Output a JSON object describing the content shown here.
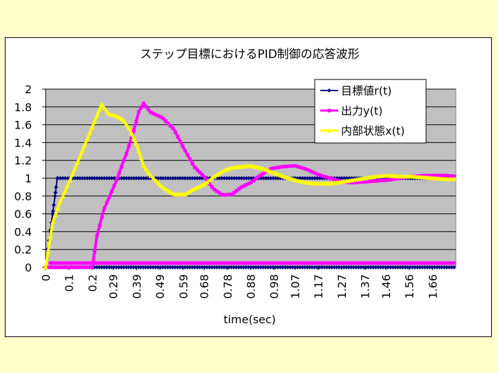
{
  "chart_data": {
    "type": "line",
    "title": "ステップ目標におけるPID制御の応答波形",
    "xlabel": "time(sec)",
    "ylabel": "",
    "ylim": [
      0,
      2
    ],
    "y_ticks": [
      "0",
      "0.2",
      "0.4",
      "0.6",
      "0.8",
      "1",
      "1.2",
      "1.4",
      "1.6",
      "1.8",
      "2"
    ],
    "x_range": [
      0,
      1.76
    ],
    "x_tick_labels": [
      "0",
      "0.1",
      "0.2",
      "0.29",
      "0.39",
      "0.49",
      "0.59",
      "0.68",
      "0.78",
      "0.88",
      "0.98",
      "1.07",
      "1.17",
      "1.27",
      "1.37",
      "1.46",
      "1.56",
      "1.66"
    ],
    "x_tick_values": [
      0,
      0.1,
      0.2,
      0.29,
      0.39,
      0.49,
      0.59,
      0.68,
      0.78,
      0.88,
      0.98,
      1.07,
      1.17,
      1.27,
      1.37,
      1.46,
      1.56,
      1.66
    ],
    "grid": true,
    "plot_background": "#c0c0c0",
    "legend_position": "top-right",
    "series": [
      {
        "name": "目標値r(t)",
        "color": "#000080",
        "marker": "diamond",
        "points": [
          [
            0,
            0
          ],
          [
            0.005,
            0.1
          ],
          [
            0.01,
            0.2
          ],
          [
            0.015,
            0.3
          ],
          [
            0.02,
            0.4
          ],
          [
            0.025,
            0.5
          ],
          [
            0.03,
            0.6
          ],
          [
            0.035,
            0.7
          ],
          [
            0.04,
            0.8
          ],
          [
            0.045,
            0.9
          ],
          [
            0.05,
            1.0
          ],
          [
            1.76,
            1.0
          ]
        ],
        "baseline": 0
      },
      {
        "name": "出力y(t)",
        "color": "#ff00ff",
        "marker": "square",
        "points": [
          [
            0,
            0
          ],
          [
            0.2,
            0
          ],
          [
            0.22,
            0.35
          ],
          [
            0.25,
            0.65
          ],
          [
            0.3,
            0.95
          ],
          [
            0.35,
            1.3
          ],
          [
            0.38,
            1.55
          ],
          [
            0.4,
            1.75
          ],
          [
            0.42,
            1.84
          ],
          [
            0.45,
            1.74
          ],
          [
            0.5,
            1.68
          ],
          [
            0.55,
            1.55
          ],
          [
            0.6,
            1.3
          ],
          [
            0.64,
            1.12
          ],
          [
            0.68,
            1.02
          ],
          [
            0.72,
            0.88
          ],
          [
            0.76,
            0.81
          ],
          [
            0.8,
            0.82
          ],
          [
            0.84,
            0.9
          ],
          [
            0.88,
            0.95
          ],
          [
            0.92,
            1.03
          ],
          [
            0.97,
            1.11
          ],
          [
            1.02,
            1.13
          ],
          [
            1.07,
            1.14
          ],
          [
            1.12,
            1.1
          ],
          [
            1.17,
            1.04
          ],
          [
            1.22,
            1.0
          ],
          [
            1.27,
            0.96
          ],
          [
            1.32,
            0.95
          ],
          [
            1.37,
            0.96
          ],
          [
            1.42,
            0.97
          ],
          [
            1.47,
            0.98
          ],
          [
            1.52,
            1.0
          ],
          [
            1.57,
            1.02
          ],
          [
            1.62,
            1.03
          ],
          [
            1.67,
            1.03
          ],
          [
            1.72,
            1.03
          ],
          [
            1.76,
            1.02
          ]
        ],
        "baseline": 0.04
      },
      {
        "name": "内部状態x(t)",
        "color": "#ffff00",
        "marker": "triangle",
        "points": [
          [
            0,
            0
          ],
          [
            0.03,
            0.5
          ],
          [
            0.06,
            0.72
          ],
          [
            0.1,
            0.95
          ],
          [
            0.14,
            1.2
          ],
          [
            0.18,
            1.45
          ],
          [
            0.22,
            1.7
          ],
          [
            0.24,
            1.83
          ],
          [
            0.27,
            1.72
          ],
          [
            0.3,
            1.7
          ],
          [
            0.33,
            1.66
          ],
          [
            0.36,
            1.55
          ],
          [
            0.39,
            1.38
          ],
          [
            0.42,
            1.14
          ],
          [
            0.45,
            1.03
          ],
          [
            0.5,
            0.9
          ],
          [
            0.55,
            0.82
          ],
          [
            0.6,
            0.82
          ],
          [
            0.63,
            0.87
          ],
          [
            0.68,
            0.93
          ],
          [
            0.72,
            1.01
          ],
          [
            0.76,
            1.08
          ],
          [
            0.8,
            1.12
          ],
          [
            0.84,
            1.13
          ],
          [
            0.88,
            1.14
          ],
          [
            0.93,
            1.11
          ],
          [
            0.98,
            1.06
          ],
          [
            1.02,
            1.02
          ],
          [
            1.07,
            0.98
          ],
          [
            1.12,
            0.95
          ],
          [
            1.17,
            0.94
          ],
          [
            1.22,
            0.94
          ],
          [
            1.27,
            0.96
          ],
          [
            1.32,
            0.98
          ],
          [
            1.37,
            1.0
          ],
          [
            1.42,
            1.02
          ],
          [
            1.47,
            1.03
          ],
          [
            1.52,
            1.02
          ],
          [
            1.57,
            1.02
          ],
          [
            1.62,
            1.01
          ],
          [
            1.67,
            1.0
          ],
          [
            1.72,
            0.99
          ],
          [
            1.76,
            0.99
          ]
        ]
      }
    ]
  }
}
